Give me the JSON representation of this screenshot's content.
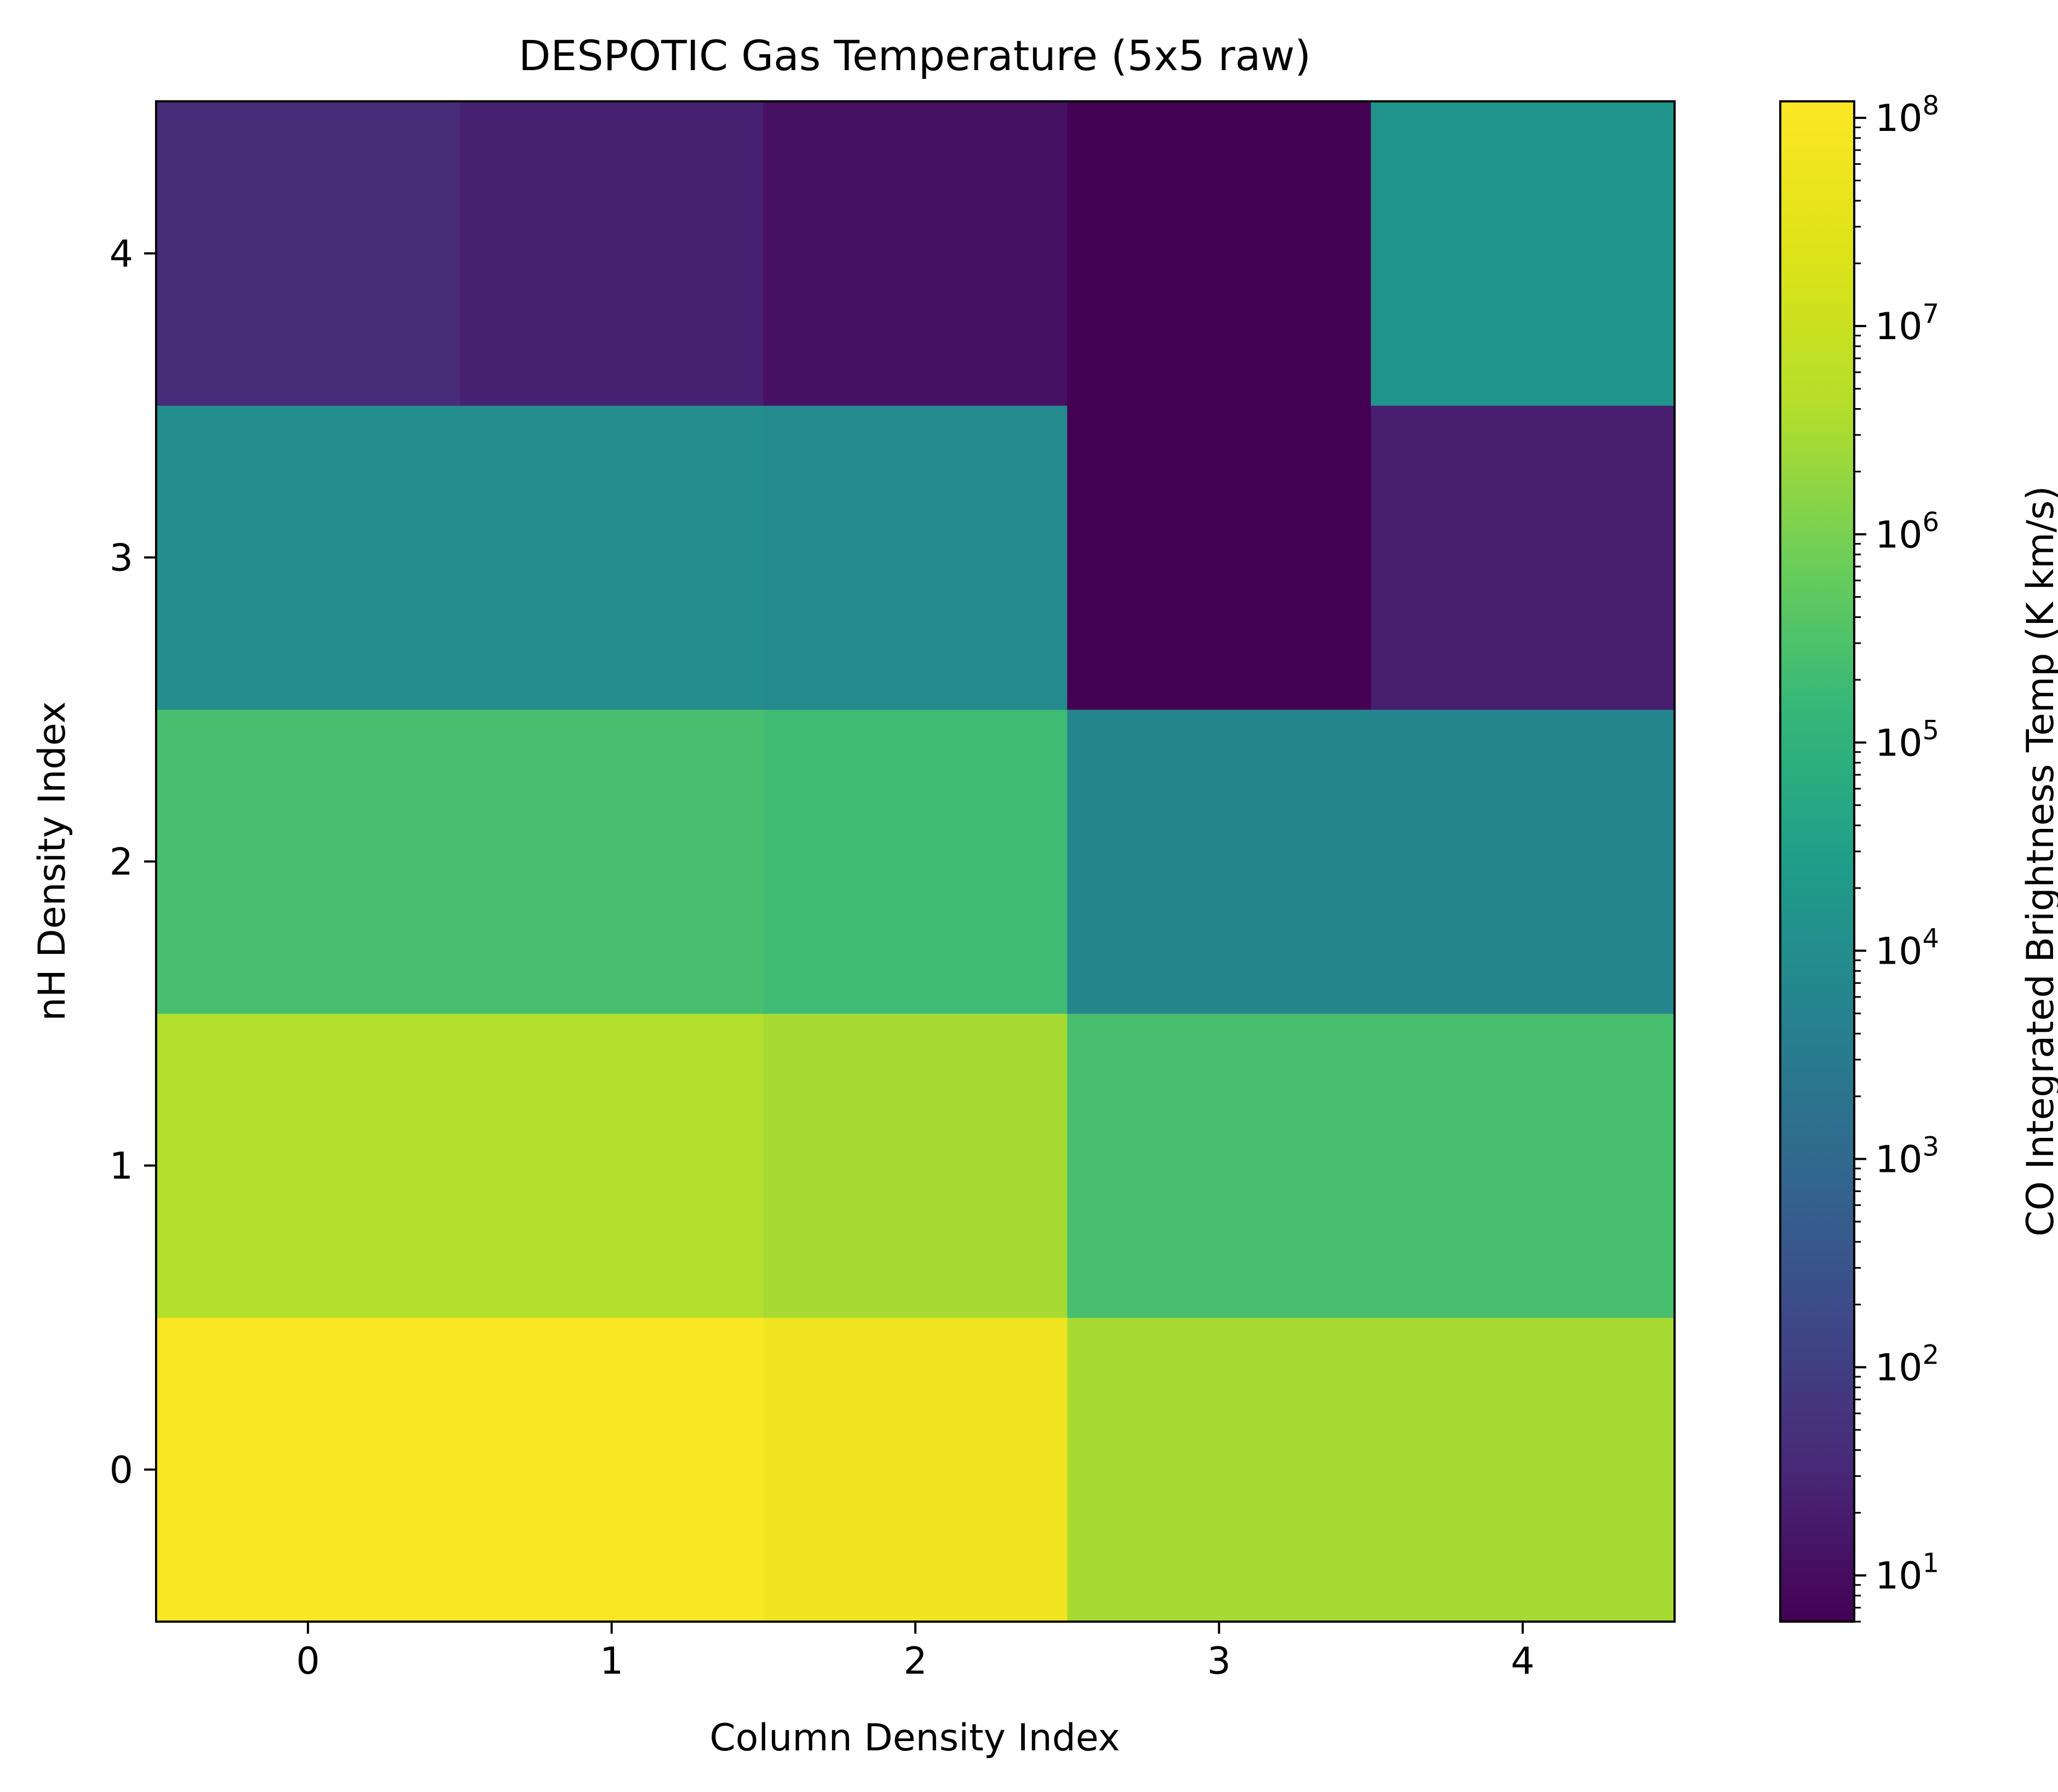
{
  "chart_data": {
    "type": "heatmap",
    "title": "DESPOTIC Gas Temperature (5x5 raw)",
    "xlabel": "Column Density Index",
    "ylabel": "nH Density Index",
    "colorbar_label": "CO Integrated Brightness Temp (K km/s)",
    "colormap": "viridis",
    "color_scale": "log",
    "color_range": [
      6,
      120000000
    ],
    "x_ticks": [
      "0",
      "1",
      "2",
      "3",
      "4"
    ],
    "y_ticks": [
      "0",
      "1",
      "2",
      "3",
      "4"
    ],
    "colorbar_ticks": [
      {
        "value": 10,
        "base": "10",
        "exp": "1"
      },
      {
        "value": 100,
        "base": "10",
        "exp": "2"
      },
      {
        "value": 1000,
        "base": "10",
        "exp": "3"
      },
      {
        "value": 10000,
        "base": "10",
        "exp": "4"
      },
      {
        "value": 100000,
        "base": "10",
        "exp": "5"
      },
      {
        "value": 1000000,
        "base": "10",
        "exp": "6"
      },
      {
        "value": 10000000,
        "base": "10",
        "exp": "7"
      },
      {
        "value": 100000000,
        "base": "10",
        "exp": "8"
      }
    ],
    "rows": [
      {
        "nH_index": 0,
        "values": [
          100000000,
          100000000,
          60000000,
          3000000,
          3000000
        ]
      },
      {
        "nH_index": 1,
        "values": [
          4000000,
          4000000,
          3000000,
          250000,
          250000
        ]
      },
      {
        "nH_index": 2,
        "values": [
          250000,
          250000,
          200000,
          6000,
          6000
        ]
      },
      {
        "nH_index": 3,
        "values": [
          10000,
          10000,
          8000,
          6,
          20
        ]
      },
      {
        "nH_index": 4,
        "values": [
          40,
          25,
          12,
          6,
          15000
        ]
      }
    ]
  }
}
